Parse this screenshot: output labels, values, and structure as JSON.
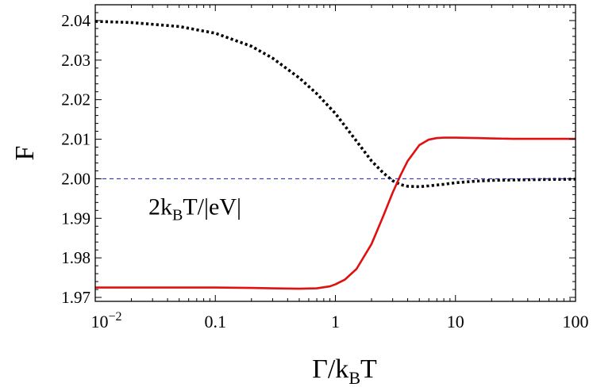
{
  "chart_data": {
    "type": "line",
    "x_scale": "log",
    "xlim": [
      0.01,
      100
    ],
    "ylim": [
      1.969,
      2.044
    ],
    "xlabel": {
      "main": "Γ/k",
      "sub": "B",
      "tail": "T"
    },
    "ylabel": "F",
    "xticks": [
      {
        "value": 0.01,
        "base": "10",
        "exp": "−2"
      },
      {
        "value": 0.1,
        "label": "0.1"
      },
      {
        "value": 1,
        "label": "1"
      },
      {
        "value": 10,
        "label": "10"
      },
      {
        "value": 100,
        "label": "100"
      }
    ],
    "yticks": [
      {
        "value": 1.97,
        "label": "1.97"
      },
      {
        "value": 1.98,
        "label": "1.98"
      },
      {
        "value": 1.99,
        "label": "1.99"
      },
      {
        "value": 2.0,
        "label": "2.00"
      },
      {
        "value": 2.01,
        "label": "2.01"
      },
      {
        "value": 2.02,
        "label": "2.02"
      },
      {
        "value": 2.03,
        "label": "2.03"
      },
      {
        "value": 2.04,
        "label": "2.04"
      }
    ],
    "annotation": {
      "pre": "2k",
      "sub": "B",
      "post": "T/|eV|",
      "x": 0.02,
      "y": 1.993
    },
    "series": [
      {
        "style": "dotted",
        "color": "#000000",
        "x": [
          0.01,
          0.02,
          0.05,
          0.1,
          0.2,
          0.3,
          0.5,
          0.7,
          1.0,
          1.5,
          2.0,
          2.5,
          3.0,
          3.5,
          4.0,
          5.0,
          6.0,
          8.0,
          10,
          15,
          20,
          30,
          50,
          100
        ],
        "y": [
          2.0398,
          2.0395,
          2.0385,
          2.0368,
          2.0335,
          2.0305,
          2.0255,
          2.0215,
          2.0165,
          2.0095,
          2.0045,
          2.0015,
          1.9995,
          1.9985,
          1.9981,
          1.998,
          1.9982,
          1.9986,
          1.999,
          1.9994,
          1.9996,
          1.9997,
          1.9998,
          1.9999
        ]
      },
      {
        "style": "solid",
        "color": "#e01010",
        "x": [
          0.01,
          0.05,
          0.1,
          0.2,
          0.3,
          0.5,
          0.7,
          0.9,
          1.0,
          1.2,
          1.5,
          2.0,
          2.5,
          3.0,
          3.5,
          4.0,
          5.0,
          6.0,
          7.0,
          8.0,
          10,
          15,
          20,
          30,
          50,
          100
        ],
        "y": [
          1.9725,
          1.9725,
          1.9725,
          1.9724,
          1.9723,
          1.9722,
          1.9723,
          1.9728,
          1.9733,
          1.9745,
          1.9772,
          1.9835,
          1.9905,
          1.9965,
          2.001,
          2.0045,
          2.0085,
          2.0099,
          2.0103,
          2.0104,
          2.0104,
          2.0103,
          2.0102,
          2.0101,
          2.0101,
          2.0101
        ]
      },
      {
        "style": "dashed",
        "color": "#1a1aa8",
        "x": [
          0.01,
          100
        ],
        "y": [
          2.0,
          2.0
        ]
      }
    ]
  }
}
